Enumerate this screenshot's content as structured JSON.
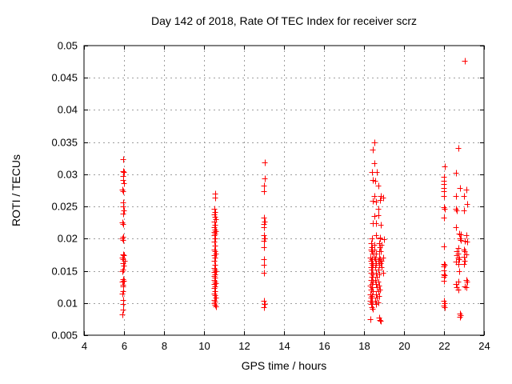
{
  "title": "Day 142 of 2018, Rate Of TEC Index for receiver scrz",
  "colors": {
    "marker": "#ff0000",
    "grid": "#9e9e9e",
    "axis": "#000000",
    "background": "#ffffff"
  },
  "chart_data": {
    "type": "scatter",
    "title": "Day 142 of 2018, Rate Of TEC Index for receiver scrz",
    "xlabel": "GPS time / hours",
    "ylabel": "ROTI / TECUs",
    "xlim": [
      4,
      24
    ],
    "ylim": [
      0.005,
      0.05
    ],
    "x_ticks": [
      4,
      6,
      8,
      10,
      12,
      14,
      16,
      18,
      20,
      22,
      24
    ],
    "x_tick_labels": [
      "4",
      "6",
      "8",
      "10",
      "12",
      "14",
      "16",
      "18",
      "20",
      "22",
      "24"
    ],
    "y_ticks": [
      0.005,
      0.01,
      0.015,
      0.02,
      0.025,
      0.03,
      0.035,
      0.04,
      0.045,
      0.05
    ],
    "y_tick_labels": [
      "0.005",
      "0.01",
      "0.015",
      "0.02",
      "0.025",
      "0.03",
      "0.035",
      "0.04",
      "0.045",
      "0.05"
    ],
    "grid": true,
    "legend": "none",
    "marker": {
      "shape": "plus",
      "color": "#ff0000",
      "size": 7
    },
    "series": [
      {
        "name": "ROTI",
        "points": [
          [
            5.95,
            0.0323
          ],
          [
            5.95,
            0.0305
          ],
          [
            6.0,
            0.0303
          ],
          [
            5.97,
            0.0297
          ],
          [
            5.95,
            0.0291
          ],
          [
            5.98,
            0.0286
          ],
          [
            5.93,
            0.0276
          ],
          [
            5.97,
            0.0274
          ],
          [
            5.95,
            0.0256
          ],
          [
            5.97,
            0.025
          ],
          [
            6.0,
            0.0244
          ],
          [
            5.95,
            0.0239
          ],
          [
            5.93,
            0.0225
          ],
          [
            5.97,
            0.0223
          ],
          [
            5.95,
            0.0203
          ],
          [
            5.9,
            0.0201
          ],
          [
            5.97,
            0.0198
          ],
          [
            5.95,
            0.0176
          ],
          [
            6.0,
            0.0174
          ],
          [
            5.93,
            0.0171
          ],
          [
            5.97,
            0.0168
          ],
          [
            6.02,
            0.0165
          ],
          [
            5.95,
            0.0162
          ],
          [
            5.98,
            0.0158
          ],
          [
            5.95,
            0.0152
          ],
          [
            5.9,
            0.0149
          ],
          [
            5.95,
            0.0137
          ],
          [
            6.0,
            0.0135
          ],
          [
            5.93,
            0.0133
          ],
          [
            5.97,
            0.0128
          ],
          [
            5.95,
            0.0126
          ],
          [
            5.97,
            0.0118
          ],
          [
            5.93,
            0.0115
          ],
          [
            5.95,
            0.0105
          ],
          [
            5.97,
            0.0099
          ],
          [
            5.95,
            0.009
          ],
          [
            5.93,
            0.0082
          ],
          [
            10.55,
            0.027
          ],
          [
            10.55,
            0.0264
          ],
          [
            10.5,
            0.0247
          ],
          [
            10.55,
            0.0242
          ],
          [
            10.5,
            0.0238
          ],
          [
            10.55,
            0.0234
          ],
          [
            10.6,
            0.023
          ],
          [
            10.5,
            0.0226
          ],
          [
            10.55,
            0.0222
          ],
          [
            10.5,
            0.0218
          ],
          [
            10.55,
            0.0214
          ],
          [
            10.6,
            0.0212
          ],
          [
            10.5,
            0.021
          ],
          [
            10.55,
            0.0208
          ],
          [
            10.5,
            0.0206
          ],
          [
            10.55,
            0.0201
          ],
          [
            10.5,
            0.0196
          ],
          [
            10.55,
            0.0189
          ],
          [
            10.5,
            0.0183
          ],
          [
            10.55,
            0.018
          ],
          [
            10.6,
            0.0177
          ],
          [
            10.5,
            0.0174
          ],
          [
            10.55,
            0.0171
          ],
          [
            10.5,
            0.0166
          ],
          [
            10.55,
            0.016
          ],
          [
            10.5,
            0.0154
          ],
          [
            10.55,
            0.0152
          ],
          [
            10.6,
            0.015
          ],
          [
            10.5,
            0.0148
          ],
          [
            10.55,
            0.0145
          ],
          [
            10.5,
            0.0142
          ],
          [
            10.55,
            0.0139
          ],
          [
            10.5,
            0.0136
          ],
          [
            10.55,
            0.0133
          ],
          [
            10.6,
            0.0131
          ],
          [
            10.5,
            0.0129
          ],
          [
            10.55,
            0.0126
          ],
          [
            10.5,
            0.0123
          ],
          [
            10.55,
            0.0118
          ],
          [
            10.5,
            0.0115
          ],
          [
            10.55,
            0.0112
          ],
          [
            10.6,
            0.0108
          ],
          [
            10.5,
            0.0105
          ],
          [
            10.55,
            0.0102
          ],
          [
            10.5,
            0.01
          ],
          [
            10.55,
            0.0097
          ],
          [
            10.6,
            0.0095
          ],
          [
            13.05,
            0.0319
          ],
          [
            13.05,
            0.0294
          ],
          [
            13.0,
            0.0283
          ],
          [
            13.0,
            0.0274
          ],
          [
            13.0,
            0.0233
          ],
          [
            13.05,
            0.0227
          ],
          [
            13.0,
            0.0223
          ],
          [
            13.0,
            0.0218
          ],
          [
            13.0,
            0.0205
          ],
          [
            13.05,
            0.0201
          ],
          [
            13.0,
            0.0197
          ],
          [
            13.0,
            0.0187
          ],
          [
            13.0,
            0.0168
          ],
          [
            13.0,
            0.016
          ],
          [
            13.0,
            0.0147
          ],
          [
            13.0,
            0.0104
          ],
          [
            13.05,
            0.0098
          ],
          [
            13.0,
            0.0094
          ],
          [
            18.5,
            0.035
          ],
          [
            18.45,
            0.0338
          ],
          [
            18.5,
            0.0317
          ],
          [
            18.4,
            0.0304
          ],
          [
            18.65,
            0.0304
          ],
          [
            18.45,
            0.0291
          ],
          [
            18.55,
            0.029
          ],
          [
            18.7,
            0.0282
          ],
          [
            18.5,
            0.0266
          ],
          [
            18.85,
            0.0266
          ],
          [
            18.95,
            0.0264
          ],
          [
            18.45,
            0.0259
          ],
          [
            18.6,
            0.0258
          ],
          [
            18.8,
            0.026
          ],
          [
            18.7,
            0.0246
          ],
          [
            18.5,
            0.0235
          ],
          [
            18.7,
            0.0236
          ],
          [
            18.45,
            0.0224
          ],
          [
            18.6,
            0.0224
          ],
          [
            18.85,
            0.0222
          ],
          [
            18.6,
            0.0205
          ],
          [
            18.8,
            0.0202
          ],
          [
            18.4,
            0.02
          ],
          [
            18.8,
            0.02
          ],
          [
            19.0,
            0.0199
          ],
          [
            18.35,
            0.0193
          ],
          [
            18.75,
            0.0193
          ],
          [
            18.5,
            0.019
          ],
          [
            18.9,
            0.019
          ],
          [
            18.4,
            0.0187
          ],
          [
            18.8,
            0.0187
          ],
          [
            18.35,
            0.0183
          ],
          [
            18.5,
            0.0183
          ],
          [
            18.4,
            0.018
          ],
          [
            18.75,
            0.018
          ],
          [
            18.85,
            0.018
          ],
          [
            18.45,
            0.0177
          ],
          [
            18.6,
            0.0177
          ],
          [
            18.3,
            0.0171
          ],
          [
            18.5,
            0.0171
          ],
          [
            18.75,
            0.0171
          ],
          [
            18.95,
            0.0171
          ],
          [
            18.4,
            0.0168
          ],
          [
            18.55,
            0.0168
          ],
          [
            18.8,
            0.0168
          ],
          [
            18.35,
            0.0165
          ],
          [
            18.7,
            0.0165
          ],
          [
            18.9,
            0.0165
          ],
          [
            18.4,
            0.0162
          ],
          [
            18.6,
            0.0162
          ],
          [
            18.85,
            0.0162
          ],
          [
            18.45,
            0.0159
          ],
          [
            18.75,
            0.0159
          ],
          [
            18.35,
            0.0156
          ],
          [
            18.55,
            0.0156
          ],
          [
            18.9,
            0.0156
          ],
          [
            18.4,
            0.0152
          ],
          [
            18.7,
            0.0152
          ],
          [
            18.35,
            0.0147
          ],
          [
            18.6,
            0.0147
          ],
          [
            18.95,
            0.0147
          ],
          [
            18.45,
            0.0144
          ],
          [
            18.75,
            0.0144
          ],
          [
            18.4,
            0.0141
          ],
          [
            18.65,
            0.0141
          ],
          [
            18.35,
            0.0136
          ],
          [
            18.55,
            0.0136
          ],
          [
            18.45,
            0.0133
          ],
          [
            18.7,
            0.0133
          ],
          [
            18.4,
            0.013
          ],
          [
            18.6,
            0.013
          ],
          [
            18.3,
            0.0127
          ],
          [
            18.75,
            0.0127
          ],
          [
            18.4,
            0.0124
          ],
          [
            18.65,
            0.0124
          ],
          [
            18.35,
            0.0121
          ],
          [
            18.8,
            0.0121
          ],
          [
            18.45,
            0.0118
          ],
          [
            18.7,
            0.0118
          ],
          [
            18.3,
            0.0114
          ],
          [
            18.6,
            0.0114
          ],
          [
            18.4,
            0.0111
          ],
          [
            18.75,
            0.0111
          ],
          [
            18.35,
            0.0108
          ],
          [
            18.65,
            0.0108
          ],
          [
            18.3,
            0.0104
          ],
          [
            18.55,
            0.0104
          ],
          [
            18.4,
            0.0101
          ],
          [
            18.7,
            0.0101
          ],
          [
            18.35,
            0.0098
          ],
          [
            18.6,
            0.0098
          ],
          [
            18.4,
            0.0094
          ],
          [
            18.45,
            0.0091
          ],
          [
            18.3,
            0.0075
          ],
          [
            18.75,
            0.0077
          ],
          [
            18.8,
            0.0074
          ],
          [
            18.85,
            0.0072
          ],
          [
            23.05,
            0.0476
          ],
          [
            22.7,
            0.0341
          ],
          [
            22.05,
            0.0312
          ],
          [
            22.6,
            0.0302
          ],
          [
            22.0,
            0.0296
          ],
          [
            22.0,
            0.029
          ],
          [
            22.0,
            0.0285
          ],
          [
            22.0,
            0.0279
          ],
          [
            22.8,
            0.0279
          ],
          [
            23.1,
            0.0276
          ],
          [
            22.0,
            0.0274
          ],
          [
            22.0,
            0.0266
          ],
          [
            22.6,
            0.0266
          ],
          [
            23.0,
            0.0266
          ],
          [
            23.16,
            0.0254
          ],
          [
            22.0,
            0.0249
          ],
          [
            22.02,
            0.0247
          ],
          [
            22.6,
            0.0246
          ],
          [
            22.65,
            0.0244
          ],
          [
            23.0,
            0.0244
          ],
          [
            22.0,
            0.0233
          ],
          [
            22.6,
            0.0218
          ],
          [
            22.75,
            0.0208
          ],
          [
            22.85,
            0.0207
          ],
          [
            23.1,
            0.0206
          ],
          [
            22.78,
            0.02
          ],
          [
            22.82,
            0.0198
          ],
          [
            23.05,
            0.0197
          ],
          [
            23.15,
            0.0196
          ],
          [
            22.0,
            0.0188
          ],
          [
            22.7,
            0.0185
          ],
          [
            23.0,
            0.0183
          ],
          [
            22.65,
            0.0181
          ],
          [
            23.05,
            0.018
          ],
          [
            22.7,
            0.0177
          ],
          [
            23.1,
            0.0176
          ],
          [
            22.65,
            0.0174
          ],
          [
            23.0,
            0.0172
          ],
          [
            22.7,
            0.017
          ],
          [
            22.75,
            0.0168
          ],
          [
            23.05,
            0.0166
          ],
          [
            22.6,
            0.0164
          ],
          [
            22.7,
            0.0161
          ],
          [
            23.0,
            0.0161
          ],
          [
            22.0,
            0.0161
          ],
          [
            22.02,
            0.0159
          ],
          [
            22.0,
            0.0157
          ],
          [
            22.0,
            0.0151
          ],
          [
            22.75,
            0.0149
          ],
          [
            22.0,
            0.0145
          ],
          [
            22.02,
            0.0143
          ],
          [
            22.0,
            0.0141
          ],
          [
            23.1,
            0.0136
          ],
          [
            22.0,
            0.0135
          ],
          [
            22.7,
            0.0133
          ],
          [
            23.15,
            0.0133
          ],
          [
            22.6,
            0.0129
          ],
          [
            23.05,
            0.0126
          ],
          [
            22.65,
            0.0124
          ],
          [
            23.1,
            0.0124
          ],
          [
            22.7,
            0.0121
          ],
          [
            22.0,
            0.0103
          ],
          [
            22.02,
            0.01
          ],
          [
            22.0,
            0.0096
          ],
          [
            22.02,
            0.0094
          ],
          [
            22.8,
            0.0084
          ],
          [
            22.85,
            0.0081
          ],
          [
            22.8,
            0.0078
          ]
        ]
      }
    ]
  }
}
